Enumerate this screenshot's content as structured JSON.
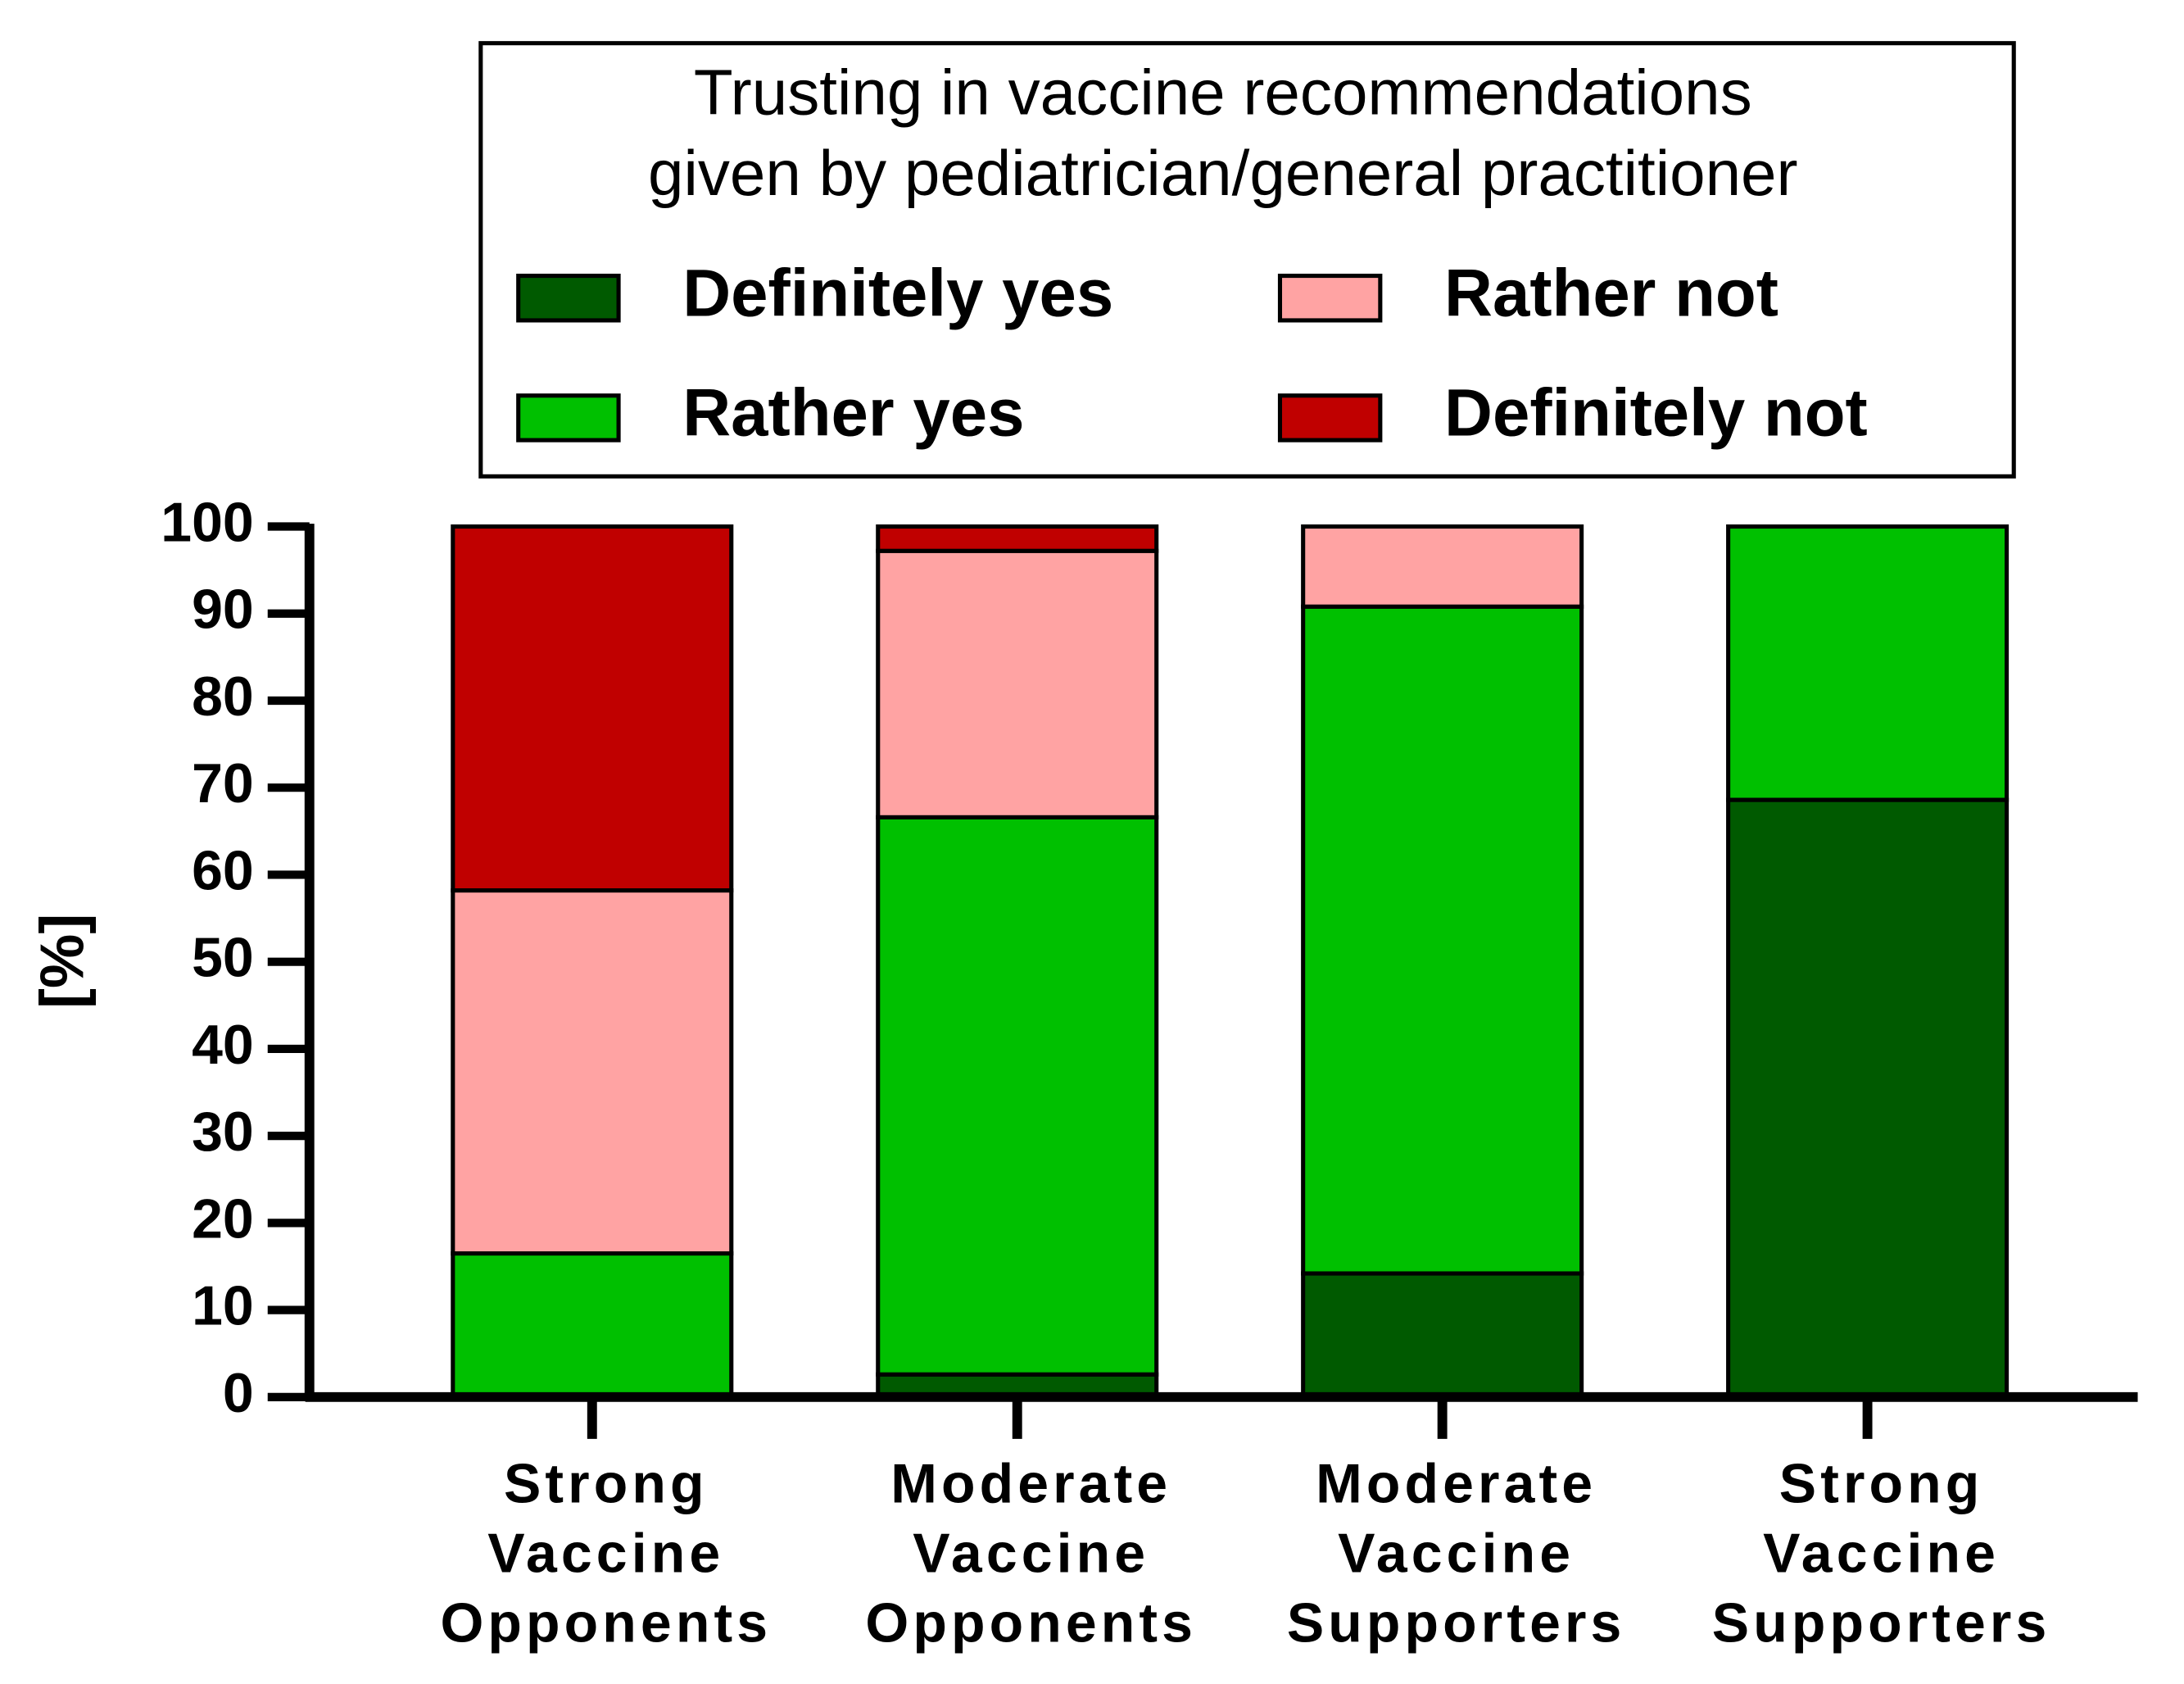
{
  "chart_data": {
    "type": "stacked_bar",
    "legend_title": [
      "Trusting in vaccine recommendations",
      "given by pediatrician/general practitioner"
    ],
    "ylabel": "[%]",
    "categories": [
      "Strong Vaccine Opponents",
      "Moderate Vaccine Opponents",
      "Moderate Vaccine Supporters",
      "Strong Vaccine Supporters"
    ],
    "series": [
      {
        "name": "Definitely yes",
        "color": "#005a00",
        "values": [
          0,
          2.6,
          14.2,
          68.6
        ]
      },
      {
        "name": "Rather yes",
        "color": "#00c000",
        "values": [
          16.5,
          64,
          76.6,
          31.4
        ]
      },
      {
        "name": "Rather not",
        "color": "#ffa3a3",
        "values": [
          41.7,
          30.6,
          9.2,
          0
        ]
      },
      {
        "name": "Definitely not",
        "color": "#c00000",
        "values": [
          41.8,
          2.8,
          0,
          0
        ]
      }
    ],
    "ylim": [
      0,
      100
    ],
    "yticks": [
      0,
      10,
      20,
      30,
      40,
      50,
      60,
      70,
      80,
      90,
      100
    ]
  }
}
